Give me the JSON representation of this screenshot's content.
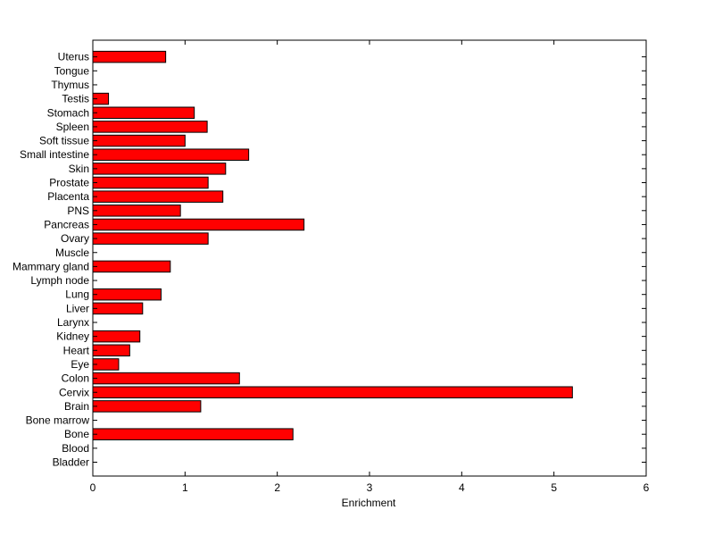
{
  "chart_data": {
    "type": "bar",
    "orientation": "horizontal",
    "title": "",
    "xlabel": "Enrichment",
    "ylabel": "",
    "xlim": [
      0,
      6
    ],
    "x_ticks": [
      0,
      1,
      2,
      3,
      4,
      5,
      6
    ],
    "grid": false,
    "legend": "none",
    "bar_color": "#ff0000",
    "bar_edge_color": "#000000",
    "categories": [
      "Bladder",
      "Blood",
      "Bone",
      "Bone marrow",
      "Brain",
      "Cervix",
      "Colon",
      "Eye",
      "Heart",
      "Kidney",
      "Larynx",
      "Liver",
      "Lung",
      "Lymph node",
      "Mammary gland",
      "Muscle",
      "Ovary",
      "Pancreas",
      "PNS",
      "Placenta",
      "Prostate",
      "Skin",
      "Small intestine",
      "Soft tissue",
      "Spleen",
      "Stomach",
      "Testis",
      "Thymus",
      "Tongue",
      "Uterus"
    ],
    "values": [
      0,
      0,
      2.17,
      0,
      1.17,
      5.2,
      1.59,
      0.28,
      0.4,
      0.51,
      0,
      0.54,
      0.74,
      0,
      0.84,
      0,
      1.25,
      2.29,
      0.95,
      1.41,
      1.25,
      1.44,
      1.69,
      1.0,
      1.24,
      1.1,
      0.17,
      0,
      0,
      0.79
    ]
  }
}
